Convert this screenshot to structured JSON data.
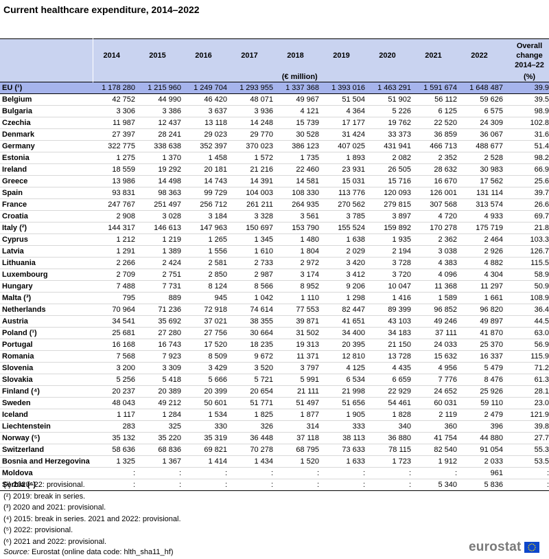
{
  "title": "Current healthcare expenditure, 2014–2022",
  "header": {
    "years": [
      "2014",
      "2015",
      "2016",
      "2017",
      "2018",
      "2019",
      "2020",
      "2021",
      "2022"
    ],
    "change_line1": "Overall",
    "change_line2": "change",
    "change_line3": "2014–22",
    "unit": "(€ million)",
    "change_unit": "(%)"
  },
  "rows": [
    {
      "c": "EU (¹)",
      "v": [
        "1 178 280",
        "1 215 960",
        "1 249 704",
        "1 293 955",
        "1 337 368",
        "1 393 016",
        "1 463 291",
        "1 591 674",
        "1 648 487",
        "39.9"
      ]
    },
    {
      "c": "Belgium",
      "v": [
        "42 752",
        "44 990",
        "46 420",
        "48 071",
        "49 967",
        "51 504",
        "51 902",
        "56 112",
        "59 626",
        "39.5"
      ]
    },
    {
      "c": "Bulgaria",
      "v": [
        "3 306",
        "3 386",
        "3 637",
        "3 936",
        "4 121",
        "4 364",
        "5 226",
        "6 125",
        "6 575",
        "98.9"
      ]
    },
    {
      "c": "Czechia",
      "v": [
        "11 987",
        "12 437",
        "13 118",
        "14 248",
        "15 739",
        "17 177",
        "19 762",
        "22 520",
        "24 309",
        "102.8"
      ]
    },
    {
      "c": "Denmark",
      "v": [
        "27 397",
        "28 241",
        "29 023",
        "29 770",
        "30 528",
        "31 424",
        "33 373",
        "36 859",
        "36 067",
        "31.6"
      ]
    },
    {
      "c": "Germany",
      "v": [
        "322 775",
        "338 638",
        "352 397",
        "370 023",
        "386 123",
        "407 025",
        "431 941",
        "466 713",
        "488 677",
        "51.4"
      ]
    },
    {
      "c": "Estonia",
      "v": [
        "1 275",
        "1 370",
        "1 458",
        "1 572",
        "1 735",
        "1 893",
        "2 082",
        "2 352",
        "2 528",
        "98.2"
      ]
    },
    {
      "c": "Ireland",
      "v": [
        "18 559",
        "19 292",
        "20 181",
        "21 216",
        "22 460",
        "23 931",
        "26 505",
        "28 632",
        "30 983",
        "66.9"
      ]
    },
    {
      "c": "Greece",
      "v": [
        "13 986",
        "14 498",
        "14 743",
        "14 391",
        "14 581",
        "15 031",
        "15 716",
        "16 670",
        "17 562",
        "25.6"
      ]
    },
    {
      "c": "Spain",
      "v": [
        "93 831",
        "98 363",
        "99 729",
        "104 003",
        "108 330",
        "113 776",
        "120 093",
        "126 001",
        "131 114",
        "39.7"
      ]
    },
    {
      "c": "France",
      "v": [
        "247 767",
        "251 497",
        "256 712",
        "261 211",
        "264 935",
        "270 562",
        "279 815",
        "307 568",
        "313 574",
        "26.6"
      ]
    },
    {
      "c": "Croatia",
      "v": [
        "2 908",
        "3 028",
        "3 184",
        "3 328",
        "3 561",
        "3 785",
        "3 897",
        "4 720",
        "4 933",
        "69.7"
      ]
    },
    {
      "c": "Italy (²)",
      "v": [
        "144 317",
        "146 613",
        "147 963",
        "150 697",
        "153 790",
        "155 524",
        "159 892",
        "170 278",
        "175 719",
        "21.8"
      ]
    },
    {
      "c": "Cyprus",
      "v": [
        "1 212",
        "1 219",
        "1 265",
        "1 345",
        "1 480",
        "1 638",
        "1 935",
        "2 362",
        "2 464",
        "103.3"
      ]
    },
    {
      "c": "Latvia",
      "v": [
        "1 291",
        "1 389",
        "1 556",
        "1 610",
        "1 804",
        "2 029",
        "2 194",
        "3 038",
        "2 926",
        "126.7"
      ]
    },
    {
      "c": "Lithuania",
      "v": [
        "2 266",
        "2 424",
        "2 581",
        "2 733",
        "2 972",
        "3 420",
        "3 728",
        "4 383",
        "4 882",
        "115.5"
      ]
    },
    {
      "c": "Luxembourg",
      "v": [
        "2 709",
        "2 751",
        "2 850",
        "2 987",
        "3 174",
        "3 412",
        "3 720",
        "4 096",
        "4 304",
        "58.9"
      ]
    },
    {
      "c": "Hungary",
      "v": [
        "7 488",
        "7 731",
        "8 124",
        "8 566",
        "8 952",
        "9 206",
        "10 047",
        "11 368",
        "11 297",
        "50.9"
      ]
    },
    {
      "c": "Malta (³)",
      "v": [
        "795",
        "889",
        "945",
        "1 042",
        "1 110",
        "1 298",
        "1 416",
        "1 589",
        "1 661",
        "108.9"
      ]
    },
    {
      "c": "Netherlands",
      "v": [
        "70 964",
        "71 236",
        "72 918",
        "74 614",
        "77 553",
        "82 447",
        "89 399",
        "96 852",
        "96 820",
        "36.4"
      ]
    },
    {
      "c": "Austria",
      "v": [
        "34 541",
        "35 692",
        "37 021",
        "38 355",
        "39 871",
        "41 651",
        "43 103",
        "49 246",
        "49 897",
        "44.5"
      ]
    },
    {
      "c": "Poland (¹)",
      "v": [
        "25 681",
        "27 280",
        "27 756",
        "30 664",
        "31 502",
        "34 400",
        "34 183",
        "37 111",
        "41 870",
        "63.0"
      ]
    },
    {
      "c": "Portugal",
      "v": [
        "16 168",
        "16 743",
        "17 520",
        "18 235",
        "19 313",
        "20 395",
        "21 150",
        "24 033",
        "25 370",
        "56.9"
      ]
    },
    {
      "c": "Romania",
      "v": [
        "7 568",
        "7 923",
        "8 509",
        "9 672",
        "11 371",
        "12 810",
        "13 728",
        "15 632",
        "16 337",
        "115.9"
      ]
    },
    {
      "c": "Slovenia",
      "v": [
        "3 200",
        "3 309",
        "3 429",
        "3 520",
        "3 797",
        "4 125",
        "4 435",
        "4 956",
        "5 479",
        "71.2"
      ]
    },
    {
      "c": "Slovakia",
      "v": [
        "5 256",
        "5 418",
        "5 666",
        "5 721",
        "5 991",
        "6 534",
        "6 659",
        "7 776",
        "8 476",
        "61.3"
      ]
    },
    {
      "c": "Finland (⁴)",
      "v": [
        "20 237",
        "20 389",
        "20 399",
        "20 654",
        "21 111",
        "21 998",
        "22 929",
        "24 652",
        "25 926",
        "28.1"
      ]
    },
    {
      "c": "Sweden",
      "v": [
        "48 043",
        "49 212",
        "50 601",
        "51 771",
        "51 497",
        "51 656",
        "54 461",
        "60 031",
        "59 110",
        "23.0"
      ]
    },
    {
      "c": "Iceland",
      "v": [
        "1 117",
        "1 284",
        "1 534",
        "1 825",
        "1 877",
        "1 905",
        "1 828",
        "2 119",
        "2 479",
        "121.9"
      ]
    },
    {
      "c": "Liechtenstein",
      "v": [
        "283",
        "325",
        "330",
        "326",
        "314",
        "333",
        "340",
        "360",
        "396",
        "39.8"
      ]
    },
    {
      "c": "Norway (⁵)",
      "v": [
        "35 132",
        "35 220",
        "35 319",
        "36 448",
        "37 118",
        "38 113",
        "36 880",
        "41 754",
        "44 880",
        "27.7"
      ]
    },
    {
      "c": "Switzerland",
      "v": [
        "58 636",
        "68 836",
        "69 821",
        "70 278",
        "68 795",
        "73 633",
        "78 115",
        "82 540",
        "91 054",
        "55.3"
      ]
    },
    {
      "c": "Bosnia and Herzegovina",
      "v": [
        "1 325",
        "1 367",
        "1 414",
        "1 434",
        "1 520",
        "1 633",
        "1 723",
        "1 912",
        "2 033",
        "53.5"
      ]
    },
    {
      "c": "Moldova",
      "v": [
        ":",
        ":",
        ":",
        ":",
        ":",
        ":",
        ":",
        ":",
        "961",
        ":"
      ]
    },
    {
      "c": "Serbia (⁶)",
      "v": [
        ":",
        ":",
        ":",
        ":",
        ":",
        ":",
        ":",
        "5 340",
        "5 836",
        ":"
      ]
    }
  ],
  "footnotes": [
    "(¹) 2020–22: provisional.",
    "(²) 2019: break in series.",
    "(³) 2020 and 2021: provisional.",
    "(⁴) 2015: break in series. 2021 and 2022: provisional.",
    "(⁵) 2022: provisional.",
    "(⁶) 2021 and 2022: provisional."
  ],
  "source_label": "Source:",
  "source_text": "Eurostat (online data code: hlth_sha11_hf)",
  "logo_text": "eurostat",
  "colors": {
    "header_bg": "#c9d3f0",
    "eu_row_bg": "#a6b4ec",
    "flag_blue": "#0e47cb",
    "flag_star": "#ffde00"
  }
}
